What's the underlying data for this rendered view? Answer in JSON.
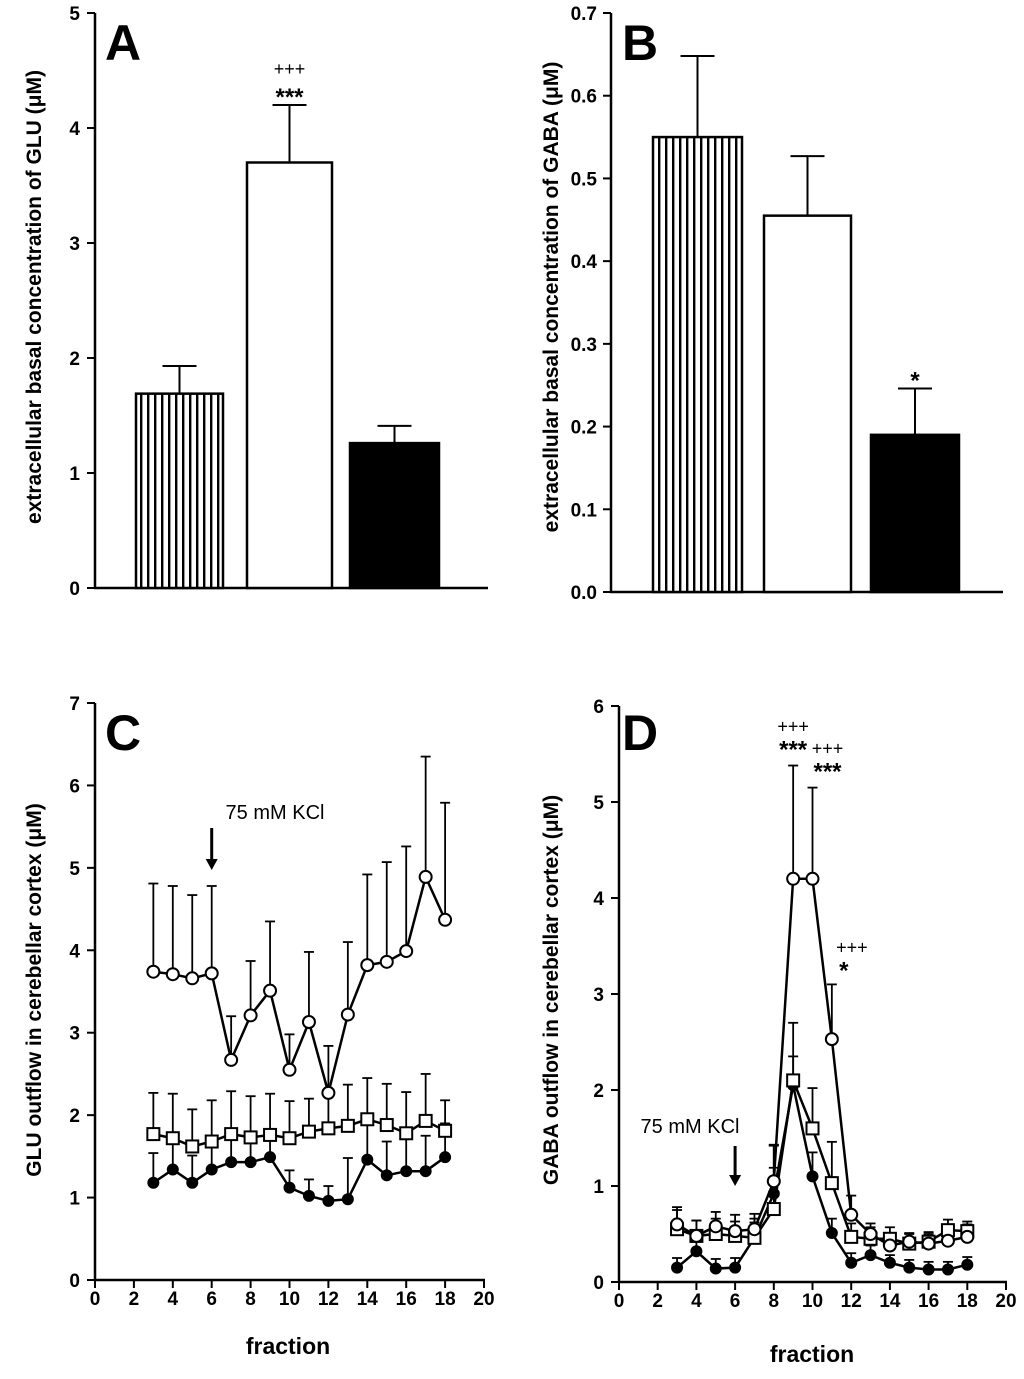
{
  "chart_data": [
    {
      "panel": "A",
      "type": "bar",
      "ylabel": "extracellular basal concentration of GLU (μM)",
      "ylim": [
        0,
        5
      ],
      "yticks": [
        "0",
        "1",
        "2",
        "3",
        "4",
        "5"
      ],
      "bars": [
        {
          "value": 1.69,
          "error": 0.24,
          "fill": "striped",
          "annotations": []
        },
        {
          "value": 3.7,
          "error": 0.5,
          "fill": "white",
          "annotations": [
            "+++",
            "***"
          ]
        },
        {
          "value": 1.26,
          "error": 0.15,
          "fill": "black",
          "annotations": []
        }
      ]
    },
    {
      "panel": "B",
      "type": "bar",
      "ylabel": "extracellular basal concentration of GABA (μM)",
      "ylim": [
        0,
        0.7
      ],
      "yticks": [
        "0.0",
        "0.1",
        "0.2",
        "0.3",
        "0.4",
        "0.5",
        "0.6",
        "0.7"
      ],
      "bars": [
        {
          "value": 0.55,
          "error": 0.098,
          "fill": "striped",
          "annotations": []
        },
        {
          "value": 0.455,
          "error": 0.072,
          "fill": "white",
          "annotations": []
        },
        {
          "value": 0.19,
          "error": 0.056,
          "fill": "black",
          "annotations": [
            "*"
          ]
        }
      ]
    },
    {
      "panel": "C",
      "type": "line",
      "xlabel": "fraction",
      "ylabel": "GLU outflow in cerebellar cortex (μM)",
      "xlim": [
        0,
        20
      ],
      "ylim": [
        0,
        7
      ],
      "xticks": [
        "0",
        "2",
        "4",
        "6",
        "8",
        "10",
        "12",
        "14",
        "16",
        "18",
        "20"
      ],
      "yticks": [
        "0",
        "1",
        "2",
        "3",
        "4",
        "5",
        "6",
        "7"
      ],
      "x": [
        3,
        4,
        5,
        6,
        7,
        8,
        9,
        10,
        11,
        12,
        13,
        14,
        15,
        16,
        17,
        18
      ],
      "arrow": {
        "label": "75 mM KCl",
        "x": 6
      },
      "series": [
        {
          "name": "open circles",
          "marker": "open-circle",
          "values": [
            3.74,
            3.71,
            3.66,
            3.72,
            2.67,
            3.21,
            3.51,
            2.55,
            3.13,
            2.27,
            3.22,
            3.82,
            3.86,
            3.99,
            4.89,
            4.37
          ],
          "errors": [
            1.07,
            1.07,
            1.01,
            1.06,
            0.53,
            0.66,
            0.84,
            0.43,
            0.85,
            0.57,
            0.88,
            1.1,
            1.21,
            1.27,
            1.46,
            1.42
          ],
          "annotations": []
        },
        {
          "name": "open squares",
          "marker": "open-square",
          "values": [
            1.77,
            1.72,
            1.62,
            1.68,
            1.77,
            1.73,
            1.76,
            1.72,
            1.8,
            1.84,
            1.87,
            1.95,
            1.88,
            1.78,
            1.93,
            1.81
          ],
          "errors": [
            0.5,
            0.54,
            0.45,
            0.5,
            0.52,
            0.5,
            0.5,
            0.45,
            0.4,
            0.47,
            0.5,
            0.5,
            0.5,
            0.5,
            0.57,
            0.37
          ],
          "annotations": []
        },
        {
          "name": "filled circles",
          "marker": "filled-circle",
          "values": [
            1.18,
            1.34,
            1.18,
            1.34,
            1.43,
            1.43,
            1.49,
            1.12,
            1.02,
            0.96,
            0.98,
            1.46,
            1.27,
            1.32,
            1.32,
            1.49
          ],
          "errors": [
            0.36,
            0.36,
            0.33,
            0.36,
            0.31,
            0.34,
            0.3,
            0.21,
            0.2,
            0.18,
            0.5,
            0.43,
            0.41,
            0.44,
            0.43,
            0.41
          ],
          "annotations": []
        }
      ]
    },
    {
      "panel": "D",
      "type": "line",
      "xlabel": "fraction",
      "ylabel": "GABA outflow in cerebellar cortex (μM)",
      "xlim": [
        0,
        20
      ],
      "ylim": [
        0,
        6
      ],
      "xticks": [
        "0",
        "2",
        "4",
        "6",
        "8",
        "10",
        "12",
        "14",
        "16",
        "18",
        "20"
      ],
      "yticks": [
        "0",
        "1",
        "2",
        "3",
        "4",
        "5",
        "6"
      ],
      "x": [
        3,
        4,
        5,
        6,
        7,
        8,
        9,
        10,
        11,
        12,
        13,
        14,
        15,
        16,
        17,
        18
      ],
      "arrow": {
        "label": "75 mM KCl",
        "x": 6
      },
      "series": [
        {
          "name": "open circles",
          "marker": "open-circle",
          "values": [
            0.6,
            0.48,
            0.58,
            0.53,
            0.55,
            1.05,
            4.2,
            4.2,
            2.53,
            0.7,
            0.5,
            0.38,
            0.42,
            0.4,
            0.43,
            0.47
          ],
          "errors": [
            0.18,
            0.16,
            0.15,
            0.17,
            0.16,
            0.38,
            1.18,
            0.95,
            0.57,
            0.2,
            0.11,
            0.1,
            0.09,
            0.1,
            0.11,
            0.13
          ],
          "annotations": [
            {
              "x": 9,
              "stat": "***",
              "plus": "+++"
            },
            {
              "x": 10,
              "stat": "***",
              "plus": "+++"
            },
            {
              "x": 11,
              "stat": "*",
              "plus": "+++"
            }
          ]
        },
        {
          "name": "open squares",
          "marker": "open-square",
          "values": [
            0.55,
            0.48,
            0.5,
            0.48,
            0.46,
            0.76,
            2.1,
            1.6,
            1.03,
            0.47,
            0.45,
            0.45,
            0.4,
            0.42,
            0.54,
            0.53
          ],
          "errors": [
            0.2,
            0.16,
            0.16,
            0.15,
            0.16,
            0.43,
            0.6,
            0.42,
            0.43,
            0.14,
            0.12,
            0.12,
            0.1,
            0.1,
            0.11,
            0.1
          ],
          "annotations": []
        },
        {
          "name": "filled circles",
          "marker": "filled-circle",
          "values": [
            0.15,
            0.32,
            0.14,
            0.15,
            0.46,
            0.92,
            2.05,
            1.1,
            0.51,
            0.2,
            0.28,
            0.2,
            0.15,
            0.13,
            0.13,
            0.18
          ],
          "errors": [
            0.1,
            0.1,
            0.1,
            0.1,
            0.2,
            0.5,
            0.3,
            0.25,
            0.15,
            0.1,
            0.1,
            0.08,
            0.08,
            0.08,
            0.08,
            0.08
          ],
          "annotations": []
        }
      ]
    }
  ]
}
